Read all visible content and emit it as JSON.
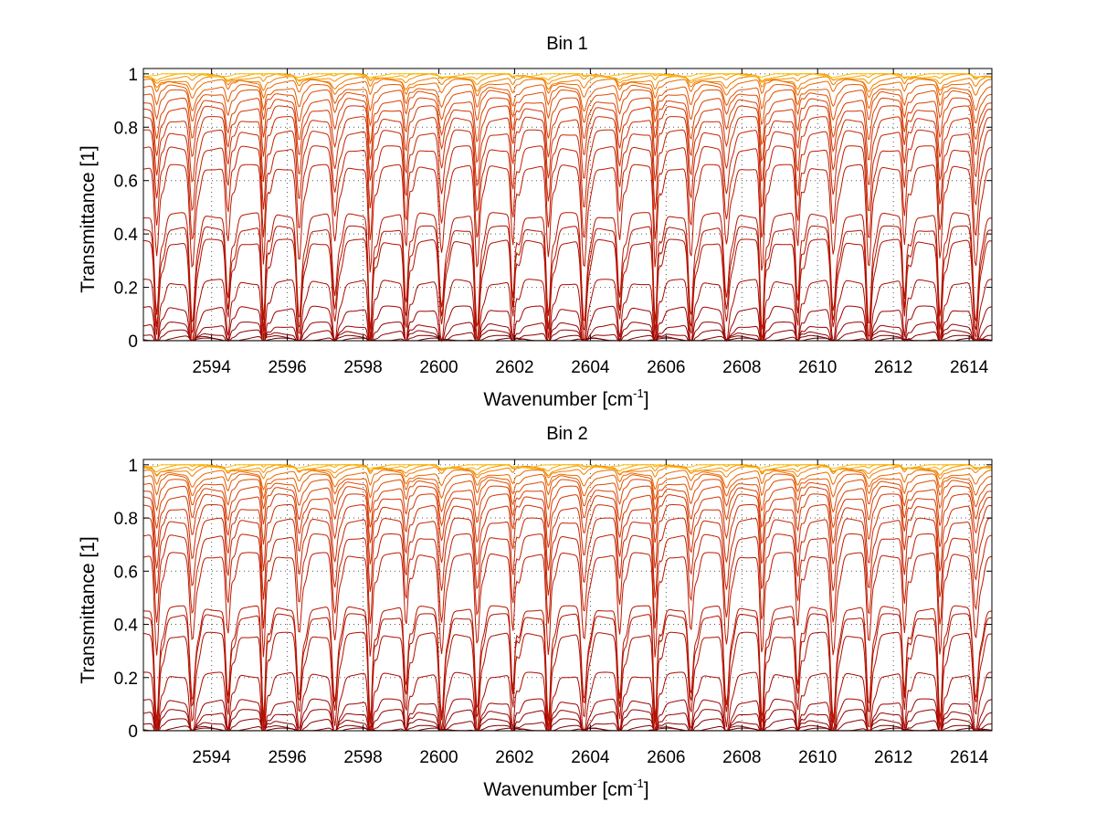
{
  "chart_data": [
    {
      "type": "line",
      "title": "Bin 1",
      "xlabel": "Wavenumber [cm",
      "xlabel_sup": "-1",
      "xlabel_end": "]",
      "ylabel": "Transmittance [1]",
      "xlim": [
        2592.2,
        2614.6
      ],
      "ylim": [
        0,
        1.02
      ],
      "xticks": [
        2594,
        2596,
        2598,
        2600,
        2602,
        2604,
        2606,
        2608,
        2610,
        2612,
        2614
      ],
      "yticks": [
        0,
        0.2,
        0.4,
        0.6,
        0.8,
        1
      ],
      "ytick_labels": [
        "0",
        "0.2",
        "0.4",
        "0.6",
        "0.8",
        "1"
      ],
      "grid": true,
      "line_period_cm": 0.94,
      "series_baselines": [
        0.0,
        0.01,
        0.03,
        0.06,
        0.12,
        0.22,
        0.37,
        0.42,
        0.47,
        0.65,
        0.72,
        0.78,
        0.83,
        0.87,
        0.9,
        0.93,
        0.95,
        0.97,
        0.98,
        0.99,
        0.995,
        1.0
      ],
      "series_colors": [
        "#6b0000",
        "#7d0000",
        "#8c0000",
        "#960000",
        "#a00000",
        "#aa0a00",
        "#b01000",
        "#b41200",
        "#b81400",
        "#bd1800",
        "#c21e00",
        "#c62400",
        "#cc2c00",
        "#d23400",
        "#d83e00",
        "#de4a00",
        "#e45800",
        "#ea6a00",
        "#f07e00",
        "#f49200",
        "#f8a600",
        "#fcbc00"
      ]
    },
    {
      "type": "line",
      "title": "Bin 2",
      "xlabel": "Wavenumber [cm",
      "xlabel_sup": "-1",
      "xlabel_end": "]",
      "ylabel": "Transmittance [1]",
      "xlim": [
        2592.2,
        2614.6
      ],
      "ylim": [
        0,
        1.02
      ],
      "xticks": [
        2594,
        2596,
        2598,
        2600,
        2602,
        2604,
        2606,
        2608,
        2610,
        2612,
        2614
      ],
      "yticks": [
        0,
        0.2,
        0.4,
        0.6,
        0.8,
        1
      ],
      "ytick_labels": [
        "0",
        "0.2",
        "0.4",
        "0.6",
        "0.8",
        "1"
      ],
      "grid": true,
      "line_period_cm": 0.94,
      "series_baselines": [
        0.0,
        0.01,
        0.035,
        0.07,
        0.11,
        0.21,
        0.36,
        0.43,
        0.46,
        0.66,
        0.73,
        0.79,
        0.84,
        0.88,
        0.91,
        0.935,
        0.955,
        0.97,
        0.985,
        0.99,
        0.995,
        1.0
      ],
      "series_colors": [
        "#6b0000",
        "#7d0000",
        "#8c0000",
        "#960000",
        "#a00000",
        "#aa0a00",
        "#b01000",
        "#b41200",
        "#b81400",
        "#bd1800",
        "#c21e00",
        "#c62400",
        "#cc2c00",
        "#d23400",
        "#d83e00",
        "#de4a00",
        "#e45800",
        "#ea6a00",
        "#f07e00",
        "#f49200",
        "#f8a600",
        "#fcbc00"
      ]
    }
  ]
}
